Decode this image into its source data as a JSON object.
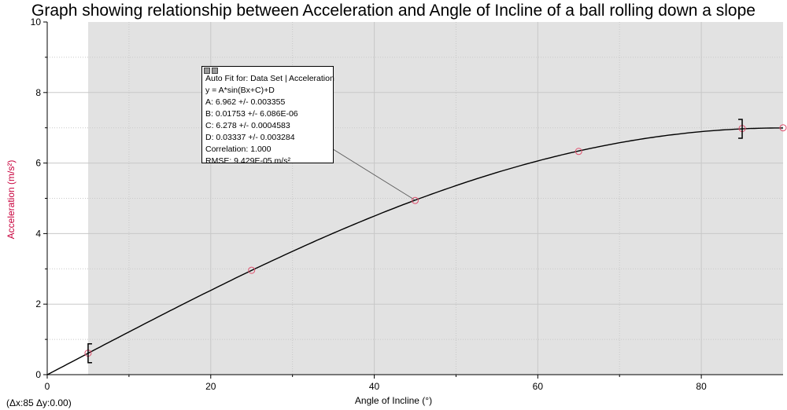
{
  "chart_data": {
    "type": "scatter",
    "title": "Graph showing relationship between Acceleration and Angle of Incline of a ball rolling down a slope",
    "xlabel": "Angle of Incline (°)",
    "ylabel": "Acceleration (m/s²)",
    "xlim": [
      0,
      90
    ],
    "ylim": [
      0,
      10
    ],
    "x_ticks": [
      0,
      20,
      40,
      60,
      80
    ],
    "y_ticks": [
      0,
      2,
      4,
      6,
      8,
      10
    ],
    "grid": true,
    "series": [
      {
        "x": [
          5,
          25,
          45,
          65,
          85,
          90
        ],
        "y": [
          0.61,
          2.96,
          4.94,
          6.33,
          6.98,
          7.0
        ],
        "marker_color": "#e0506e"
      }
    ],
    "fit": {
      "A": 6.962,
      "B": 0.01753,
      "C": 6.278,
      "D": 0.03337,
      "x_range": [
        0,
        90
      ],
      "label_lines": [
        "Auto Fit for: Data Set | Acceleration",
        "y = A*sin(Bx+C)+D",
        "A: 6.962 +/- 0.003355",
        "B: 0.01753 +/- 6.086E-06",
        "C: 6.278 +/- 0.0004583",
        "D: 0.03337 +/- 0.003284",
        "Correlation: 1.000",
        "RMSE: 9.429E-05 m/s²"
      ],
      "annotation_x": 45
    },
    "shaded_x_range": [
      5,
      90
    ],
    "bracket_x": [
      5,
      85
    ],
    "delta_readout": "(Δx:85 Δy:0.00)",
    "colors": {
      "shade": "#e2e2e2",
      "marker": "#e0506e",
      "ylabel": "#c8003c",
      "fit_line": "#000000"
    }
  }
}
